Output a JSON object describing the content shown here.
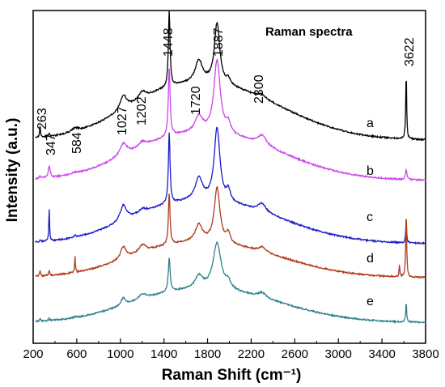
{
  "chart_data": {
    "type": "line",
    "title": "Raman spectra",
    "xlabel": "Raman Shift (cm⁻¹)",
    "ylabel": "Intensity (a.u.)",
    "xlim": [
      200,
      3800
    ],
    "x_ticks": [
      200,
      600,
      1000,
      1400,
      1800,
      2200,
      2600,
      3000,
      3400,
      3800
    ],
    "grid": false,
    "legend": "none",
    "peak_labels": [
      {
        "text": "263",
        "x": 263
      },
      {
        "text": "347",
        "x": 347
      },
      {
        "text": "584",
        "x": 584
      },
      {
        "text": "1027",
        "x": 1027
      },
      {
        "text": "1202",
        "x": 1202
      },
      {
        "text": "1448",
        "x": 1448
      },
      {
        "text": "1720",
        "x": 1720
      },
      {
        "text": "1887",
        "x": 1887
      },
      {
        "text": "2300",
        "x": 2300
      },
      {
        "text": "3622",
        "x": 3622
      }
    ],
    "series": [
      {
        "name": "a",
        "color": "#000000",
        "peaks": [
          [
            263,
            0.1,
            5
          ],
          [
            347,
            0.03,
            6
          ],
          [
            584,
            0.03,
            40
          ],
          [
            1027,
            0.12,
            35
          ],
          [
            1202,
            0.06,
            40
          ],
          [
            1448,
            0.62,
            9
          ],
          [
            1720,
            0.18,
            40
          ],
          [
            1887,
            0.5,
            30
          ],
          [
            1990,
            0.05,
            18
          ],
          [
            2300,
            0.03,
            40
          ],
          [
            3622,
            0.55,
            5
          ]
        ],
        "baseline": [
          0.02,
          0.08,
          0.44,
          0.02
        ]
      },
      {
        "name": "b",
        "color": "#cc44ee",
        "peaks": [
          [
            263,
            0.02,
            6
          ],
          [
            347,
            0.1,
            10
          ],
          [
            584,
            0.01,
            30
          ],
          [
            1027,
            0.1,
            40
          ],
          [
            1202,
            0.04,
            40
          ],
          [
            1448,
            0.56,
            10
          ],
          [
            1720,
            0.13,
            40
          ],
          [
            1887,
            0.6,
            35
          ],
          [
            1990,
            0.08,
            25
          ],
          [
            2300,
            0.08,
            50
          ],
          [
            3622,
            0.08,
            8
          ]
        ],
        "baseline": [
          0.02,
          0.06,
          0.37,
          0.02
        ]
      },
      {
        "name": "c",
        "color": "#1a1acc",
        "peaks": [
          [
            263,
            0.02,
            5
          ],
          [
            347,
            0.28,
            4
          ],
          [
            584,
            0.02,
            10
          ],
          [
            1027,
            0.13,
            35
          ],
          [
            1202,
            0.03,
            40
          ],
          [
            1448,
            0.58,
            9
          ],
          [
            1720,
            0.18,
            40
          ],
          [
            1887,
            0.6,
            32
          ],
          [
            1990,
            0.09,
            22
          ],
          [
            2300,
            0.07,
            45
          ],
          [
            3622,
            0.18,
            5
          ]
        ],
        "baseline": [
          0.02,
          0.06,
          0.33,
          0.02
        ]
      },
      {
        "name": "d",
        "color": "#b03a1a",
        "peaks": [
          [
            263,
            0.05,
            5
          ],
          [
            347,
            0.04,
            6
          ],
          [
            584,
            0.13,
            4
          ],
          [
            1027,
            0.1,
            30
          ],
          [
            1202,
            0.06,
            40
          ],
          [
            1448,
            0.42,
            9
          ],
          [
            1720,
            0.14,
            40
          ],
          [
            1887,
            0.45,
            32
          ],
          [
            1990,
            0.08,
            20
          ],
          [
            2300,
            0.04,
            40
          ],
          [
            3560,
            0.1,
            4
          ],
          [
            3622,
            0.55,
            5
          ]
        ],
        "baseline": [
          0.02,
          0.05,
          0.27,
          0.02
        ]
      },
      {
        "name": "e",
        "color": "#2f7f8f",
        "peaks": [
          [
            263,
            0.02,
            5
          ],
          [
            347,
            0.02,
            6
          ],
          [
            584,
            0.01,
            10
          ],
          [
            1027,
            0.06,
            25
          ],
          [
            1202,
            0.04,
            40
          ],
          [
            1448,
            0.28,
            10
          ],
          [
            1720,
            0.1,
            40
          ],
          [
            1887,
            0.38,
            45
          ],
          [
            1990,
            0.06,
            25
          ],
          [
            2300,
            0.04,
            45
          ],
          [
            3622,
            0.16,
            5
          ]
        ],
        "baseline": [
          0.01,
          0.04,
          0.26,
          0.02
        ]
      }
    ]
  }
}
